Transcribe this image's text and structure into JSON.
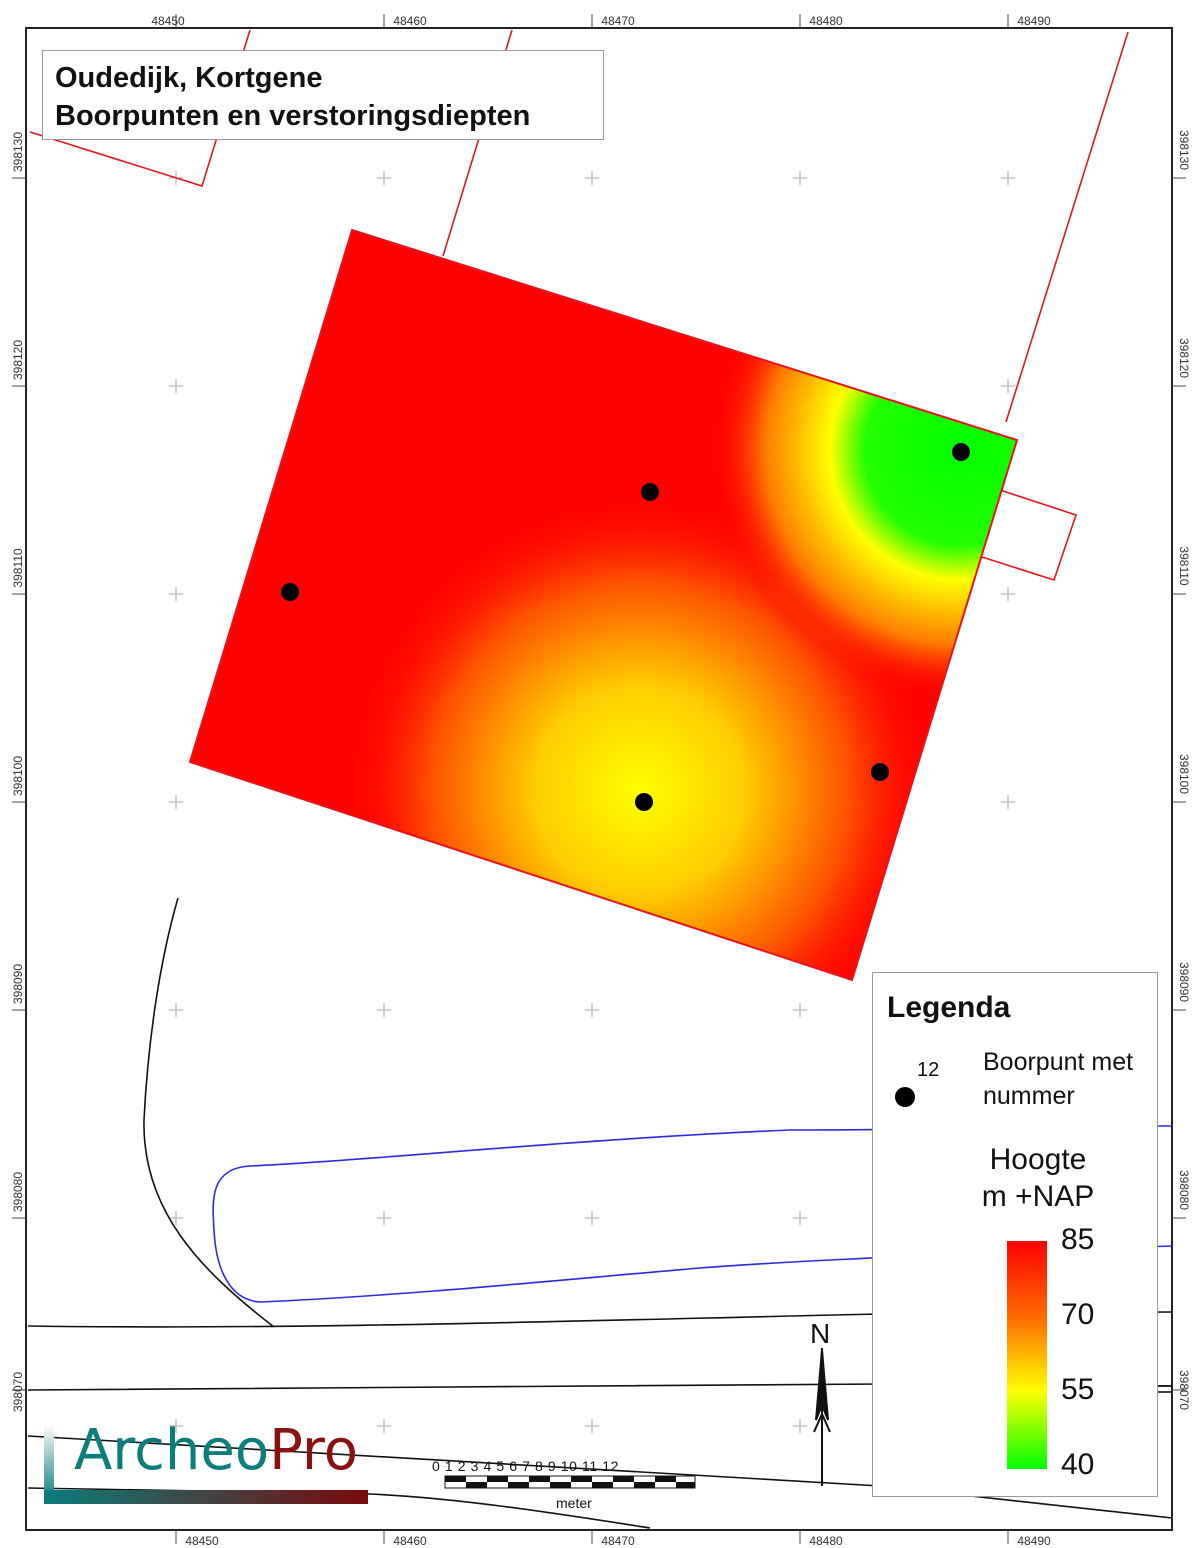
{
  "title": {
    "line1": "Oudedijk, Kortgene",
    "line2": "Boorpunten en verstoringsdiepten"
  },
  "axes": {
    "x_ticks": [
      "48450",
      "48460",
      "48470",
      "48480",
      "48490"
    ],
    "y_ticks": [
      "398130",
      "398120",
      "398110",
      "398100",
      "398090",
      "398080",
      "398070"
    ]
  },
  "legend": {
    "title": "Legenda",
    "point_sample_number": "12",
    "point_label_line1": "Boorpunt met",
    "point_label_line2": "nummer",
    "ramp_title_line1": "Hoogte",
    "ramp_title_line2": "m +NAP",
    "ramp_values": [
      "85",
      "70",
      "55",
      "40"
    ],
    "ramp_colors": [
      "#ff0000",
      "#ff6a00",
      "#ffff00",
      "#00ff00"
    ]
  },
  "scalebar": {
    "numbers": "0 1 2 3 4 5 6 7 8 9 10 11 12",
    "unit": "meter"
  },
  "north_arrow": {
    "label": "N"
  },
  "logo": {
    "part1": "Archeo",
    "part2": "Pro"
  },
  "colors": {
    "parcel_lines": "#e8141c",
    "water_line": "#2a2adf",
    "road_lines": "#111111",
    "interpolation_high": "#ff0000",
    "interpolation_low": "#00ff00"
  }
}
